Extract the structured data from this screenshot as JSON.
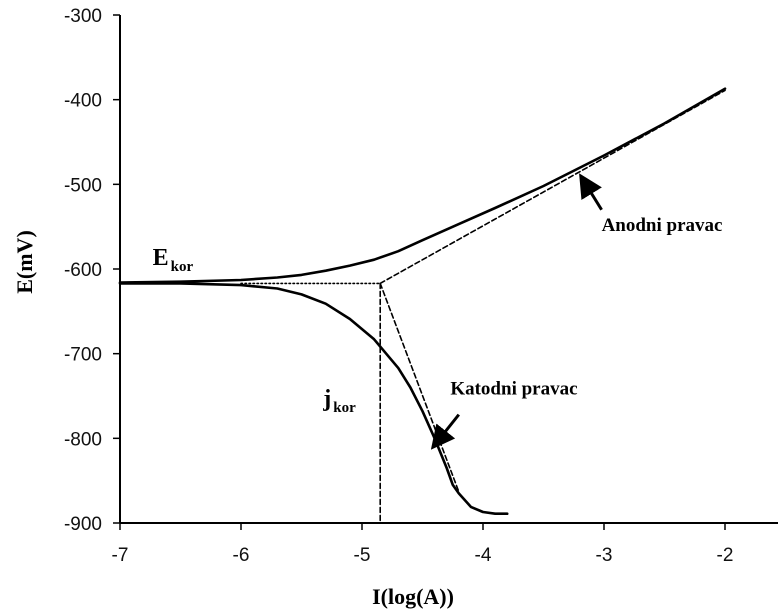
{
  "chart_data": {
    "type": "line",
    "title": "",
    "xlabel": "I(log(A))",
    "ylabel": "E(mV)",
    "xlim": [
      -7,
      -2
    ],
    "ylim": [
      -900,
      -300
    ],
    "x_ticks": [
      {
        "value": -7,
        "label": "-7"
      },
      {
        "value": -6,
        "label": "-6"
      },
      {
        "value": -5,
        "label": "-5"
      },
      {
        "value": -4,
        "label": "-4"
      },
      {
        "value": -3,
        "label": "-3"
      },
      {
        "value": -2,
        "label": "-2"
      }
    ],
    "y_ticks": [
      {
        "value": -300,
        "label": "-300"
      },
      {
        "value": -400,
        "label": "-400"
      },
      {
        "value": -500,
        "label": "-500"
      },
      {
        "value": -600,
        "label": "-600"
      },
      {
        "value": -700,
        "label": "-700"
      },
      {
        "value": -800,
        "label": "-800"
      },
      {
        "value": -900,
        "label": "-900"
      }
    ],
    "grid": false,
    "series": [
      {
        "style": "solid",
        "role": "anodic-branch",
        "x": [
          -7.0,
          -6.5,
          -6.0,
          -5.7,
          -5.5,
          -5.3,
          -5.1,
          -4.9,
          -4.7,
          -4.5,
          -4.2,
          -3.9,
          -3.5,
          -3.0,
          -2.5,
          -2.0
        ],
        "y": [
          -616,
          -615,
          -613,
          -610,
          -607,
          -602,
          -596,
          -589,
          -579,
          -566,
          -547,
          -528,
          -502,
          -466,
          -428,
          -387
        ]
      },
      {
        "style": "solid",
        "role": "cathodic-branch",
        "x": [
          -7.0,
          -6.5,
          -6.0,
          -5.7,
          -5.5,
          -5.3,
          -5.1,
          -4.9,
          -4.7,
          -4.6,
          -4.5,
          -4.4,
          -4.3,
          -4.25,
          -4.2,
          -4.1,
          -4.0,
          -3.9,
          -3.8
        ],
        "y": [
          -617,
          -617,
          -619,
          -623,
          -630,
          -641,
          -659,
          -683,
          -717,
          -740,
          -768,
          -800,
          -835,
          -855,
          -865,
          -881,
          -887,
          -889,
          -889
        ]
      },
      {
        "style": "dashed",
        "role": "anodic-tafel-line",
        "x": [
          -4.85,
          -2.0
        ],
        "y": [
          -617,
          -389
        ]
      },
      {
        "style": "dashed",
        "role": "cathodic-tafel-line",
        "x": [
          -4.85,
          -4.2
        ],
        "y": [
          -617,
          -863
        ]
      },
      {
        "style": "dotted",
        "role": "corrosion-potential-line",
        "x": [
          -6.0,
          -4.85
        ],
        "y": [
          -617,
          -617
        ]
      },
      {
        "style": "dashed",
        "role": "corrosion-current-line",
        "x": [
          -4.85,
          -4.85
        ],
        "y": [
          -617,
          -900
        ]
      }
    ],
    "annotations": [
      {
        "name": "e-kor",
        "text": "E",
        "sub": "kor",
        "x": -6.73,
        "y": -595
      },
      {
        "name": "j-kor",
        "text": "j",
        "sub": "kor",
        "x": -5.32,
        "y": -762
      },
      {
        "name": "anodni-pravac",
        "text": "Anodni pravac",
        "x": -3.02,
        "y": -555,
        "arrow_from": [
          -3.02,
          -530
        ],
        "arrow_to": [
          -3.18,
          -493
        ]
      },
      {
        "name": "katodni-pravac",
        "text": "Katodni pravac",
        "x": -4.27,
        "y": -748,
        "arrow_from": [
          -4.2,
          -772
        ],
        "arrow_to": [
          -4.4,
          -808
        ]
      }
    ]
  }
}
